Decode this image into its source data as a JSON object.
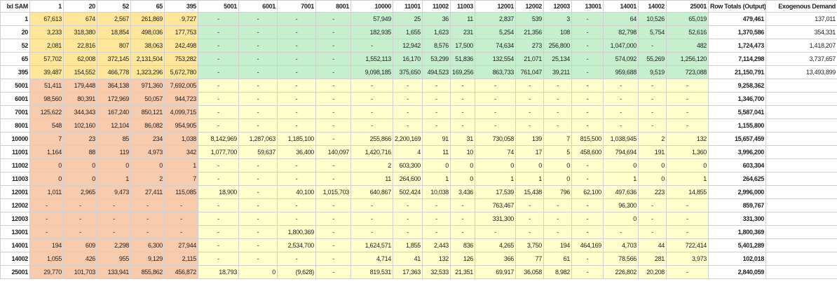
{
  "table": {
    "corner": "Ixl SAM",
    "columns": [
      "1",
      "20",
      "52",
      "65",
      "395",
      "5001",
      "6001",
      "7001",
      "8001",
      "10000",
      "11001",
      "11002",
      "11003",
      "12001",
      "12002",
      "12003",
      "13001",
      "14001",
      "14002",
      "25001"
    ],
    "total_header": "Row Totals (Output)",
    "exogenous_header": "Exogenous Demand",
    "rows": [
      {
        "label": "1",
        "cells": [
          "67,613",
          "674",
          "2,567",
          "261,869",
          "9,727",
          "-",
          "-",
          "-",
          "-",
          "57,949",
          "25",
          "36",
          "11",
          "2,837",
          "539",
          "3",
          "-",
          "64",
          "10,526",
          "65,019"
        ],
        "total": "479,461",
        "exogenous": "137,011"
      },
      {
        "label": "20",
        "cells": [
          "3,233",
          "318,380",
          "18,854",
          "498,036",
          "177,753",
          "-",
          "-",
          "-",
          "-",
          "182,935",
          "1,655",
          "1,623",
          "231",
          "5,254",
          "21,356",
          "108",
          "-",
          "82,798",
          "5,754",
          "52,616"
        ],
        "total": "1,370,586",
        "exogenous": "354,331"
      },
      {
        "label": "52",
        "cells": [
          "2,081",
          "22,816",
          "807",
          "38,063",
          "242,498",
          "-",
          "-",
          "-",
          "-",
          "-",
          "12,942",
          "8,576",
          "17,500",
          "74,634",
          "273",
          "256,800",
          "-",
          "1,047,000",
          "-",
          "482"
        ],
        "total": "1,724,473",
        "exogenous": "1,418,207"
      },
      {
        "label": "65",
        "cells": [
          "57,702",
          "62,008",
          "372,145",
          "2,131,504",
          "753,282",
          "-",
          "-",
          "-",
          "-",
          "1,552,113",
          "16,170",
          "53,299",
          "51,836",
          "132,554",
          "21,071",
          "25,134",
          "-",
          "574,092",
          "55,269",
          "1,256,120"
        ],
        "total": "7,114,298",
        "exogenous": "3,737,657"
      },
      {
        "label": "395",
        "cells": [
          "39,487",
          "154,552",
          "466,778",
          "1,323,296",
          "5,672,780",
          "-",
          "-",
          "-",
          "-",
          "9,098,185",
          "375,650",
          "494,523",
          "169,256",
          "863,733",
          "761,047",
          "39,211",
          "-",
          "959,688",
          "9,519",
          "723,088"
        ],
        "total": "21,150,791",
        "exogenous": "13,493,899"
      },
      {
        "label": "5001",
        "cells": [
          "51,411",
          "179,448",
          "364,138",
          "971,360",
          "7,692,005",
          "-",
          "-",
          "-",
          "-",
          "-",
          "-",
          "-",
          "-",
          "-",
          "-",
          "-",
          "-",
          "-",
          "-",
          "-"
        ],
        "total": "9,258,362"
      },
      {
        "label": "6001",
        "cells": [
          "98,560",
          "80,391",
          "172,969",
          "50,057",
          "944,723",
          "-",
          "-",
          "-",
          "-",
          "-",
          "-",
          "-",
          "-",
          "-",
          "-",
          "-",
          "-",
          "-",
          "-",
          "-"
        ],
        "total": "1,346,700"
      },
      {
        "label": "7001",
        "cells": [
          "125,622",
          "344,343",
          "167,240",
          "850,121",
          "4,099,715",
          "-",
          "-",
          "-",
          "-",
          "-",
          "-",
          "-",
          "-",
          "-",
          "-",
          "-",
          "-",
          "-",
          "-",
          "-"
        ],
        "total": "5,587,041"
      },
      {
        "label": "8001",
        "cells": [
          "548",
          "102,160",
          "12,104",
          "86,082",
          "954,905",
          "-",
          "-",
          "-",
          "-",
          "-",
          "-",
          "-",
          "-",
          "-",
          "-",
          "-",
          "-",
          "-",
          "-",
          "-"
        ],
        "total": "1,155,800"
      },
      {
        "label": "10000",
        "cells": [
          "7",
          "23",
          "85",
          "234",
          "1,038",
          "8,142,969",
          "1,287,063",
          "1,185,100",
          "-",
          "255,866",
          "2,200,169",
          "91",
          "31",
          "730,058",
          "139",
          "7",
          "815,500",
          "1,038,945",
          "2",
          "132"
        ],
        "total": "15,657,459"
      },
      {
        "label": "11001",
        "cells": [
          "1,164",
          "88",
          "119",
          "4,973",
          "342",
          "1,077,700",
          "59,637",
          "36,400",
          "140,097",
          "1,420,716",
          "4",
          "11",
          "10",
          "74",
          "17",
          "5",
          "458,600",
          "794,694",
          "191",
          "1,360"
        ],
        "total": "3,996,200"
      },
      {
        "label": "11002",
        "cells": [
          "0",
          "0",
          "0",
          "0",
          "1",
          "-",
          "-",
          "-",
          "-",
          "2",
          "603,300",
          "0",
          "0",
          "0",
          "0",
          "0",
          "-",
          "0",
          "0",
          "0"
        ],
        "total": "603,304"
      },
      {
        "label": "11003",
        "cells": [
          "0",
          "0",
          "1",
          "2",
          "7",
          "-",
          "-",
          "-",
          "-",
          "11",
          "264,600",
          "1",
          "0",
          "1",
          "1",
          "0",
          "-",
          "1",
          "0",
          "1"
        ],
        "total": "264,625"
      },
      {
        "label": "12001",
        "cells": [
          "1,011",
          "2,965",
          "9,473",
          "27,411",
          "115,085",
          "18,900",
          "-",
          "40,100",
          "1,015,703",
          "640,867",
          "502,424",
          "10,038",
          "3,436",
          "17,539",
          "15,438",
          "796",
          "62,100",
          "497,636",
          "223",
          "14,855"
        ],
        "total": "2,996,000"
      },
      {
        "label": "12002",
        "cells": [
          "-",
          "-",
          "-",
          "-",
          "-",
          "-",
          "-",
          "-",
          "-",
          "-",
          "-",
          "-",
          "-",
          "763,467",
          "-",
          "-",
          "-",
          "96,300",
          "-",
          "-"
        ],
        "total": "859,767"
      },
      {
        "label": "12003",
        "cells": [
          "-",
          "-",
          "-",
          "-",
          "-",
          "-",
          "-",
          "-",
          "-",
          "-",
          "-",
          "-",
          "-",
          "331,300",
          "-",
          "-",
          "-",
          "0",
          "-",
          "-"
        ],
        "total": "331,300"
      },
      {
        "label": "13001",
        "cells": [
          "-",
          "-",
          "-",
          "-",
          "-",
          "-",
          "-",
          "1,800,369",
          "-",
          "-",
          "-",
          "-",
          "-",
          "-",
          "-",
          "-",
          "-",
          "-",
          "-",
          "-"
        ],
        "total": "1,800,369"
      },
      {
        "label": "14001",
        "cells": [
          "194",
          "609",
          "2,298",
          "6,300",
          "27,944",
          "-",
          "-",
          "2,534,700",
          "-",
          "1,624,571",
          "1,855",
          "2,443",
          "836",
          "4,265",
          "3,750",
          "194",
          "464,169",
          "4,703",
          "44",
          "722,414"
        ],
        "total": "5,401,289"
      },
      {
        "label": "14002",
        "cells": [
          "1,055",
          "426",
          "955",
          "9,129",
          "2,115",
          "-",
          "-",
          "-",
          "-",
          "4,714",
          "41",
          "132",
          "126",
          "366",
          "77",
          "61",
          "-",
          "78,566",
          "281",
          "3,973"
        ],
        "total": "102,018"
      },
      {
        "label": "25001",
        "cells": [
          "29,770",
          "101,703",
          "133,941",
          "855,862",
          "456,872",
          "18,793",
          "0",
          "(9,628)",
          "-",
          "819,531",
          "17,363",
          "32,533",
          "21,351",
          "69,917",
          "36,058",
          "8,982",
          "-",
          "226,802",
          "20,208",
          "-"
        ],
        "total": "2,840,059"
      }
    ]
  }
}
